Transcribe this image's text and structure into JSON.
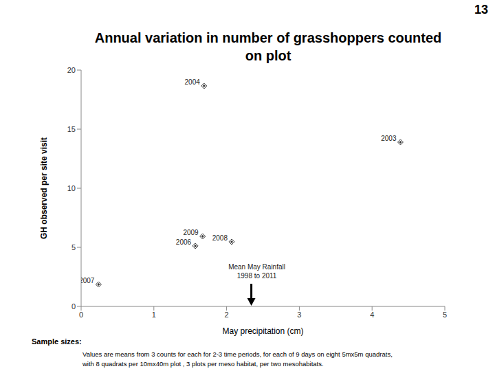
{
  "page_number": "13",
  "chart_data": {
    "type": "scatter",
    "title": [
      "Annual variation in number of grasshoppers counted",
      "on plot"
    ],
    "x_label": "May precipitation (cm)",
    "y_label": "GH observed per site visit",
    "x": [
      0.24,
      1.57,
      1.67,
      1.69,
      2.07,
      4.39
    ],
    "values": [
      1.86,
      5.12,
      5.93,
      18.66,
      5.47,
      13.9
    ],
    "labels": [
      "2007",
      "2006",
      "2009",
      "2004",
      "2008",
      "2003"
    ],
    "color": "#333333",
    "marker": "diamond",
    "xlim": [
      0,
      5
    ],
    "xticks": [
      0,
      1,
      2,
      3,
      4,
      5
    ],
    "ylim": [
      0,
      20
    ],
    "yticks": [
      0,
      5,
      10,
      15,
      20
    ],
    "grid": false,
    "annotations": [
      {
        "text": [
          "Mean May Rainfall",
          "1998 to 2011"
        ],
        "x": 2.34
      }
    ]
  },
  "footnote": {
    "heading": "Sample sizes:",
    "lines": [
      "Values are means from 3 counts for each for 2-3 time periods,  for each of 9 days  on eight  5mx5m quadrats,",
      "with 8 quadrats per 10mx40m plot , 3 plots per meso habitat, per two mesohabitats."
    ]
  }
}
